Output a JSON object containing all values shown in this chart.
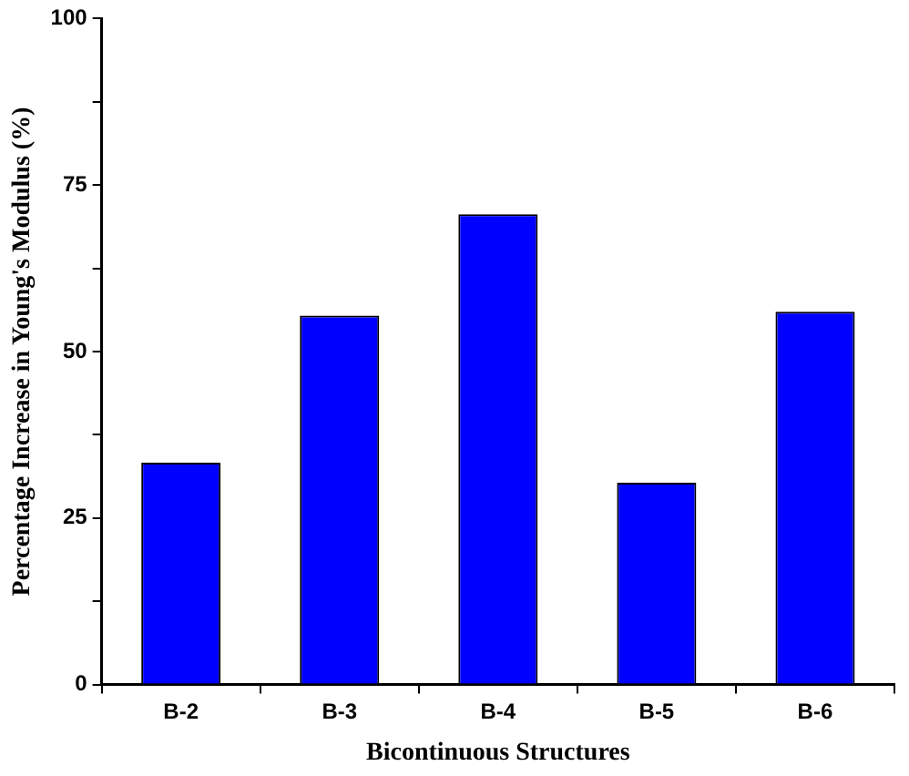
{
  "chart_data": {
    "type": "bar",
    "xlabel": "Bicontinuous Structures",
    "ylabel": "Percentage Increase in Young's Modulus (%)",
    "categories": [
      "B-2",
      "B-3",
      "B-4",
      "B-5",
      "B-6"
    ],
    "values": [
      33.3,
      55.4,
      70.6,
      30.3,
      56.0
    ],
    "color": "#0000ff",
    "ylim": [
      0,
      100
    ],
    "yticks": [
      0,
      {
        "value": 12.5,
        "label": null
      },
      25,
      {
        "value": 37.5,
        "label": null
      },
      50,
      {
        "value": 62.5,
        "label": null
      },
      75,
      {
        "value": 87.5,
        "label": null
      },
      100
    ],
    "grid": false,
    "legend": false
  }
}
